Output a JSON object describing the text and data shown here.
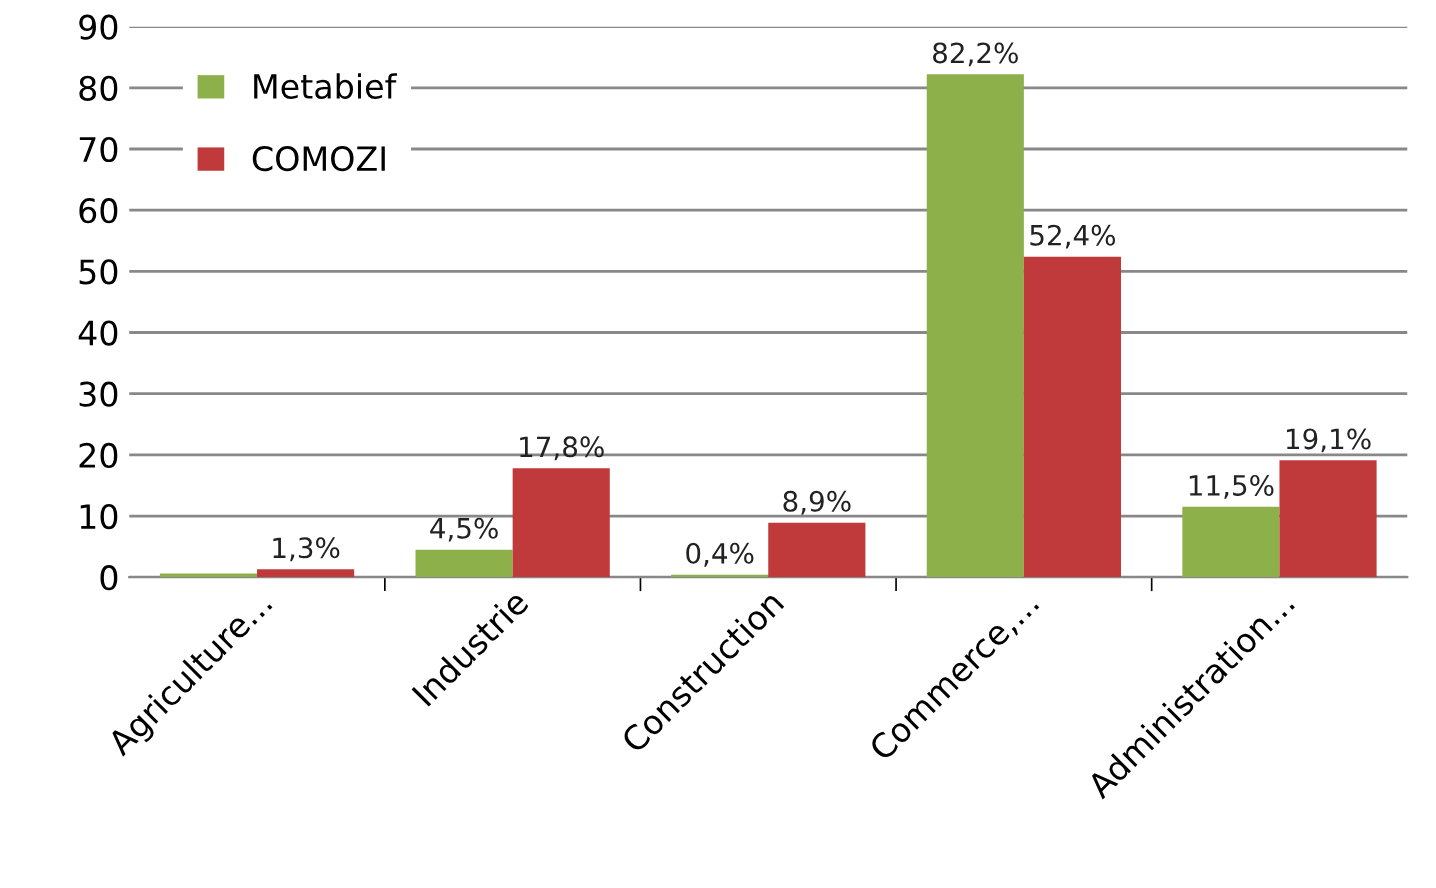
{
  "chart_data": {
    "type": "bar",
    "categories": [
      "Agriculture...",
      "Industrie",
      "Construction",
      "Commerce,...",
      "Administration..."
    ],
    "series": [
      {
        "name": "Metabief",
        "color": "#8db04a",
        "values": [
          0.6,
          4.5,
          0.4,
          82.2,
          11.5
        ],
        "value_labels": [
          null,
          "4,5%",
          "0,4%",
          "82,2%",
          "11,5%"
        ]
      },
      {
        "name": "COMOZI",
        "color": "#c0393b",
        "values": [
          1.3,
          17.8,
          8.9,
          52.4,
          19.1
        ],
        "value_labels": [
          "1,3%",
          "17,8%",
          "8,9%",
          "52,4%",
          "19,1%"
        ]
      }
    ],
    "ylim": [
      0,
      90
    ],
    "yticks": [
      0,
      10,
      20,
      30,
      40,
      50,
      60,
      70,
      80,
      90
    ],
    "grid": "y",
    "legend": "top left"
  }
}
